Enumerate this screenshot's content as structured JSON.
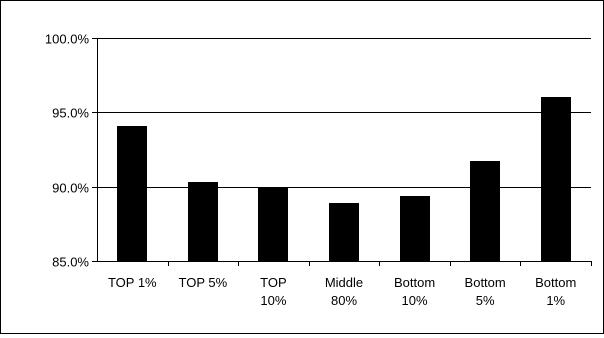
{
  "chart_data": {
    "type": "bar",
    "title": "",
    "xlabel": "",
    "ylabel": "",
    "categories": [
      [
        "TOP 1%"
      ],
      [
        "TOP 5%"
      ],
      [
        "TOP",
        "10%"
      ],
      [
        "Middle",
        "80%"
      ],
      [
        "Bottom",
        "10%"
      ],
      [
        "Bottom",
        "5%"
      ],
      [
        "Bottom",
        "1%"
      ]
    ],
    "values": [
      94.1,
      90.3,
      89.9,
      88.9,
      89.4,
      91.7,
      96.0
    ],
    "ylim": [
      85,
      100
    ],
    "yticks": [
      85,
      90,
      95,
      100
    ],
    "ytick_labels": [
      "85.0%",
      "90.0%",
      "95.0%",
      "100.0%"
    ],
    "grid": true,
    "legend": "none",
    "colors": {
      "bar": "#000000",
      "grid": "#000000",
      "axis": "#000000",
      "background": "#ffffff"
    }
  }
}
